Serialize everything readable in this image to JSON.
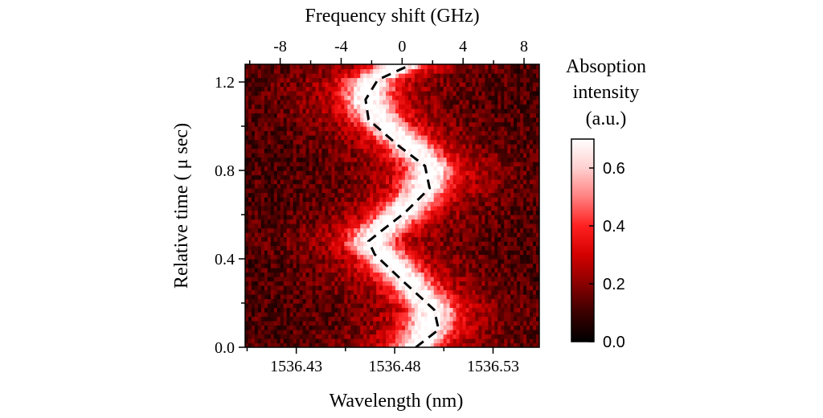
{
  "chart_data": {
    "type": "heatmap",
    "xlabel_bottom": "Wavelength (nm)",
    "xlabel_top": "Frequency shift (GHz)",
    "ylabel": "Relative time ( μ sec)",
    "colorbar_title": [
      "Absoption",
      "intensity",
      "(a.u.)"
    ],
    "x_bottom_ticks": [
      "1536.43",
      "1536.48",
      "1536.53"
    ],
    "x_bottom_tick_values": [
      1536.43,
      1536.48,
      1536.53
    ],
    "x_bottom_range": [
      1536.404,
      1536.5535
    ],
    "x_top_ticks": [
      "-8",
      "-4",
      "0",
      "4",
      "8"
    ],
    "x_top_tick_values": [
      -8,
      -4,
      0,
      4,
      8
    ],
    "x_top_range": [
      -10.3,
      9.0
    ],
    "y_ticks": [
      "0.0",
      "0.4",
      "0.8",
      "1.2"
    ],
    "y_tick_values": [
      0.0,
      0.4,
      0.8,
      1.2
    ],
    "y_range": [
      0.0,
      1.28
    ],
    "colorbar_ticks": [
      "0.0",
      "0.2",
      "0.4",
      "0.6"
    ],
    "colorbar_tick_values": [
      0.0,
      0.2,
      0.4,
      0.6
    ],
    "colorbar_range": [
      0.0,
      0.7
    ],
    "colormap": [
      "#000000",
      "#3a0000",
      "#8a0000",
      "#d40000",
      "#ff2020",
      "#ff8080",
      "#ffd0d0",
      "#ffffff"
    ],
    "dashed_trace": {
      "name": "",
      "color": "#000000",
      "freq_shift_ghz": [
        0.9,
        2.4,
        2.1,
        0.2,
        -1.8,
        -2.2,
        -1.3,
        0.2,
        1.8,
        1.5,
        -0.2,
        -2.2,
        -2.4,
        -1.6,
        0.3
      ],
      "time_us": [
        0.0,
        0.08,
        0.17,
        0.29,
        0.42,
        0.48,
        0.53,
        0.61,
        0.72,
        0.82,
        0.91,
        1.03,
        1.12,
        1.21,
        1.27
      ]
    },
    "absorption_peak": {
      "center_freq_ghz": [
        0.9,
        1.7,
        2.0,
        0.5,
        -1.3,
        -2.1,
        -1.5,
        0.0,
        1.5,
        1.8,
        0.5,
        -1.5,
        -2.3,
        -2.0,
        -0.2
      ],
      "time_us": [
        0.0,
        0.08,
        0.17,
        0.29,
        0.42,
        0.48,
        0.53,
        0.61,
        0.72,
        0.82,
        0.91,
        1.03,
        1.12,
        1.21,
        1.27
      ],
      "peak_intensity": 0.7,
      "background_intensity": 0.12
    }
  }
}
